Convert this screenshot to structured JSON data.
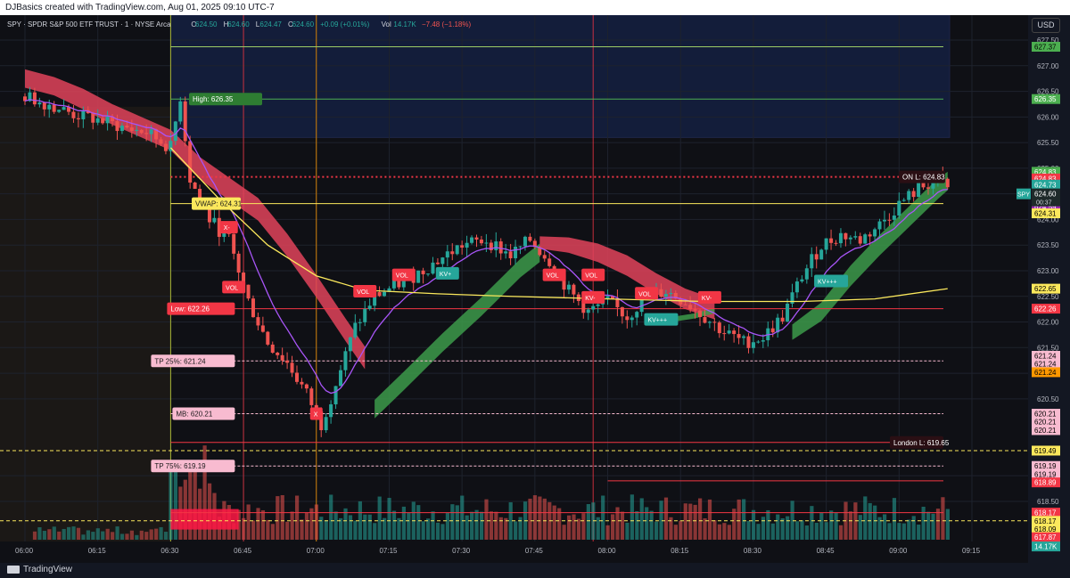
{
  "header_title": "DJBasics created with TradingView.com, Aug 01, 2025 09:10 UTC-7",
  "currency_button": "USD",
  "footer_logo": "TradingView",
  "legend": {
    "symbol": "SPY · SPDR S&P 500 ETF TRUST · 1 · NYSE Arca",
    "o_label": "O",
    "o_value": "624.50",
    "h_label": "H",
    "h_value": "624.60",
    "l_label": "L",
    "l_value": "624.47",
    "c_label": "C",
    "c_value": "624.60",
    "change": "+0.09 (+0.01%)",
    "vol_label": "Vol",
    "vol_value": "14.17K",
    "vol_change": "−7.48 (−1.18%)"
  },
  "colors": {
    "up": "#26a69a",
    "down": "#ef5350",
    "vwap": "#fbe85c",
    "ema": "#a855f7",
    "ribbon_down": "#e0435a",
    "ribbon_up": "#3c9a4a",
    "box": "#1e3a8a",
    "premarket": "#2a2418"
  },
  "chart_data": {
    "type": "candlestick",
    "symbol": "SPY",
    "interval": "1 minute",
    "x_axis_ticks": [
      "06:00",
      "06:15",
      "06:30",
      "06:45",
      "07:00",
      "07:15",
      "07:30",
      "07:45",
      "08:00",
      "08:15",
      "08:30",
      "08:45",
      "09:00",
      "09:15"
    ],
    "y_axis_ticks": [
      618.5,
      619.0,
      620.5,
      621.0,
      621.5,
      622.0,
      622.5,
      623.0,
      623.5,
      624.0,
      624.5,
      625.0,
      625.5,
      626.0,
      626.5,
      627.0,
      627.5
    ],
    "ylim": [
      617.3,
      627.9
    ],
    "last_price": "624.60",
    "countdown": "00:37",
    "levels": [
      {
        "label": "High: 626.35",
        "price": 626.35,
        "color": "#4caf50"
      },
      {
        "label": "ON L: 624.83",
        "price": 624.83,
        "color": "#f23645"
      },
      {
        "label": "VWAP: 624.31",
        "price": 624.31,
        "color": "#fbe85c"
      },
      {
        "label": "Low: 622.26",
        "price": 622.26,
        "color": "#f23645"
      },
      {
        "label": "TP 25%: 621.24",
        "price": 621.24,
        "color": "#f8bbd0"
      },
      {
        "label": "MB: 620.21",
        "price": 620.21,
        "color": "#f8bbd0"
      },
      {
        "label": "London L: 619.65",
        "price": 619.65,
        "color": "#f23645"
      },
      {
        "label": "TP 75%: 619.19",
        "price": 619.19,
        "color": "#f8bbd0"
      }
    ],
    "price_labels": [
      {
        "text": "627.37",
        "price": 627.37,
        "bg": "#4caf50",
        "fg": "#000000"
      },
      {
        "text": "626.35",
        "price": 626.35,
        "bg": "#4caf50",
        "fg": "#ffffff"
      },
      {
        "text": "624.83",
        "price": 624.93,
        "bg": "#4caf50",
        "fg": "#ffffff"
      },
      {
        "text": "624.83",
        "price": 624.8,
        "bg": "#f23645",
        "fg": "#ffffff"
      },
      {
        "text": "624.73",
        "price": 624.68,
        "bg": "#26a69a",
        "fg": "#ffffff"
      },
      {
        "text": "624.59",
        "price": 624.25,
        "bg": "#9c27b0",
        "fg": "#ffffff"
      },
      {
        "text": "624.31",
        "price": 624.12,
        "bg": "#fbe85c",
        "fg": "#000000"
      },
      {
        "text": "622.65",
        "price": 622.65,
        "bg": "#fbe85c",
        "fg": "#000000"
      },
      {
        "text": "622.26",
        "price": 622.26,
        "bg": "#f23645",
        "fg": "#ffffff"
      },
      {
        "text": "621.24",
        "price": 621.34,
        "bg": "#f8bbd0",
        "fg": "#000000"
      },
      {
        "text": "621.24",
        "price": 621.18,
        "bg": "#f8bbd0",
        "fg": "#000000"
      },
      {
        "text": "621.24",
        "price": 621.02,
        "bg": "#ff9800",
        "fg": "#000000"
      },
      {
        "text": "620.21",
        "price": 620.21,
        "bg": "#f8bbd0",
        "fg": "#000000"
      },
      {
        "text": "620.21",
        "price": 620.05,
        "bg": "#f8bbd0",
        "fg": "#000000"
      },
      {
        "text": "620.21",
        "price": 619.89,
        "bg": "#f8bbd0",
        "fg": "#000000"
      },
      {
        "text": "619.49",
        "price": 619.49,
        "bg": "#fbe85c",
        "fg": "#000000"
      },
      {
        "text": "619.19",
        "price": 619.19,
        "bg": "#f8bbd0",
        "fg": "#000000"
      },
      {
        "text": "619.19",
        "price": 619.03,
        "bg": "#f8bbd0",
        "fg": "#000000"
      },
      {
        "text": "618.89",
        "price": 618.87,
        "bg": "#f23645",
        "fg": "#ffffff"
      },
      {
        "text": "618.17",
        "price": 618.28,
        "bg": "#f23645",
        "fg": "#ffffff"
      },
      {
        "text": "618.17",
        "price": 618.12,
        "bg": "#fbe85c",
        "fg": "#000000"
      },
      {
        "text": "618.09",
        "price": 617.96,
        "bg": "#fbe85c",
        "fg": "#000000"
      },
      {
        "text": "617.87",
        "price": 617.8,
        "bg": "#f23645",
        "fg": "#ffffff"
      },
      {
        "text": "14.17K",
        "price": 617.62,
        "bg": "#26a69a",
        "fg": "#ffffff"
      }
    ],
    "signals": [
      {
        "text": "X-",
        "t": "06:42",
        "price": 623.85,
        "color": "#f23645"
      },
      {
        "text": "VOL",
        "t": "06:43",
        "price": 622.68,
        "color": "#f23645"
      },
      {
        "text": "X",
        "t": "07:00",
        "price": 620.21,
        "color": "#f23645"
      },
      {
        "text": "VOL",
        "t": "07:10",
        "price": 622.6,
        "color": "#f23645"
      },
      {
        "text": "VOL",
        "t": "07:18",
        "price": 622.92,
        "color": "#f23645"
      },
      {
        "text": "KV+",
        "t": "07:27",
        "price": 622.95,
        "color": "#26a69a"
      },
      {
        "text": "VOL",
        "t": "07:49",
        "price": 622.92,
        "color": "#f23645"
      },
      {
        "text": "VOL",
        "t": "07:57",
        "price": 622.92,
        "color": "#f23645"
      },
      {
        "text": "KV-",
        "t": "07:57",
        "price": 622.48,
        "color": "#f23645"
      },
      {
        "text": "KV+++",
        "t": "08:11",
        "price": 622.05,
        "color": "#26a69a"
      },
      {
        "text": "VOL",
        "t": "08:08",
        "price": 622.56,
        "color": "#f23645"
      },
      {
        "text": "KV-",
        "t": "08:21",
        "price": 622.48,
        "color": "#f23645"
      },
      {
        "text": "KV+++",
        "t": "08:46",
        "price": 622.8,
        "color": "#26a69a"
      }
    ],
    "time_markers": [
      {
        "t": "06:30",
        "color": "#cddc39"
      },
      {
        "t": "06:45",
        "color": "#f23645"
      },
      {
        "t": "07:00",
        "color": "#ff9800"
      },
      {
        "t": "07:57",
        "color": "#f23645"
      }
    ],
    "ohlc_path": [
      [
        "06:00",
        626.4
      ],
      [
        "06:05",
        626.25
      ],
      [
        "06:10",
        626.05
      ],
      [
        "06:15",
        625.95
      ],
      [
        "06:20",
        625.8
      ],
      [
        "06:25",
        625.7
      ],
      [
        "06:30",
        625.4
      ],
      [
        "06:32",
        626.4
      ],
      [
        "06:34",
        624.8
      ],
      [
        "06:38",
        624.0
      ],
      [
        "06:42",
        623.6
      ],
      [
        "06:46",
        622.4
      ],
      [
        "06:50",
        621.6
      ],
      [
        "06:54",
        621.2
      ],
      [
        "06:58",
        620.6
      ],
      [
        "07:01",
        620.0
      ],
      [
        "07:04",
        620.8
      ],
      [
        "07:08",
        621.9
      ],
      [
        "07:12",
        622.5
      ],
      [
        "07:16",
        622.7
      ],
      [
        "07:20",
        622.9
      ],
      [
        "07:25",
        623.2
      ],
      [
        "07:30",
        623.5
      ],
      [
        "07:35",
        623.6
      ],
      [
        "07:40",
        623.3
      ],
      [
        "07:44",
        623.6
      ],
      [
        "07:48",
        623.2
      ],
      [
        "07:52",
        622.6
      ],
      [
        "07:56",
        622.2
      ],
      [
        "08:00",
        622.4
      ],
      [
        "08:04",
        622.1
      ],
      [
        "08:08",
        622.5
      ],
      [
        "08:12",
        622.6
      ],
      [
        "08:16",
        622.4
      ],
      [
        "08:20",
        622.1
      ],
      [
        "08:24",
        621.8
      ],
      [
        "08:28",
        621.6
      ],
      [
        "08:32",
        621.7
      ],
      [
        "08:36",
        622.1
      ],
      [
        "08:40",
        622.9
      ],
      [
        "08:44",
        623.5
      ],
      [
        "08:48",
        623.7
      ],
      [
        "08:52",
        623.6
      ],
      [
        "08:56",
        623.9
      ],
      [
        "09:00",
        624.3
      ],
      [
        "09:04",
        624.6
      ],
      [
        "09:08",
        624.8
      ],
      [
        "09:10",
        624.6
      ]
    ],
    "volume_ticks": [
      "14.17K"
    ]
  }
}
